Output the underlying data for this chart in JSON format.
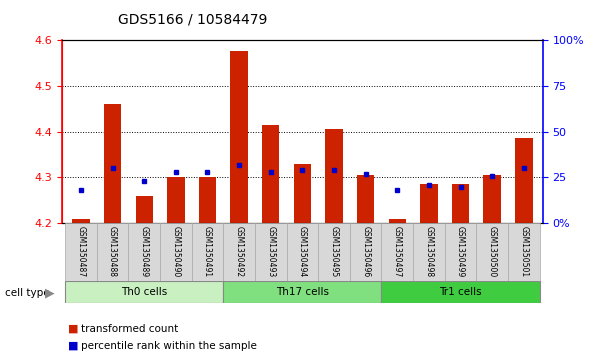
{
  "title": "GDS5166 / 10584479",
  "samples": [
    "GSM1350487",
    "GSM1350488",
    "GSM1350489",
    "GSM1350490",
    "GSM1350491",
    "GSM1350492",
    "GSM1350493",
    "GSM1350494",
    "GSM1350495",
    "GSM1350496",
    "GSM1350497",
    "GSM1350498",
    "GSM1350499",
    "GSM1350500",
    "GSM1350501"
  ],
  "transformed_counts": [
    4.21,
    4.46,
    4.26,
    4.3,
    4.3,
    4.575,
    4.415,
    4.33,
    4.405,
    4.305,
    4.21,
    4.285,
    4.285,
    4.305,
    4.385
  ],
  "percentile_ranks": [
    18,
    30,
    23,
    28,
    28,
    32,
    28,
    29,
    29,
    27,
    18,
    21,
    20,
    26,
    30
  ],
  "ylim_left": [
    4.2,
    4.6
  ],
  "ylim_right": [
    0,
    100
  ],
  "yticks_left": [
    4.2,
    4.3,
    4.4,
    4.5,
    4.6
  ],
  "yticks_right": [
    0,
    25,
    50,
    75,
    100
  ],
  "ytick_labels_right": [
    "0%",
    "25",
    "50",
    "75",
    "100%"
  ],
  "cell_groups": [
    {
      "label": "Th0 cells",
      "indices": [
        0,
        1,
        2,
        3,
        4
      ],
      "color": "#c8f0c0"
    },
    {
      "label": "Th17 cells",
      "indices": [
        5,
        6,
        7,
        8,
        9
      ],
      "color": "#80e080"
    },
    {
      "label": "Tr1 cells",
      "indices": [
        10,
        11,
        12,
        13,
        14
      ],
      "color": "#40cc40"
    }
  ],
  "bar_color": "#cc2200",
  "percentile_color": "#0000cc",
  "bar_bottom": 4.2,
  "bar_width": 0.55,
  "plot_bg": "#ffffff",
  "sample_box_color": "#d8d8d8",
  "sample_box_edge": "#aaaaaa"
}
